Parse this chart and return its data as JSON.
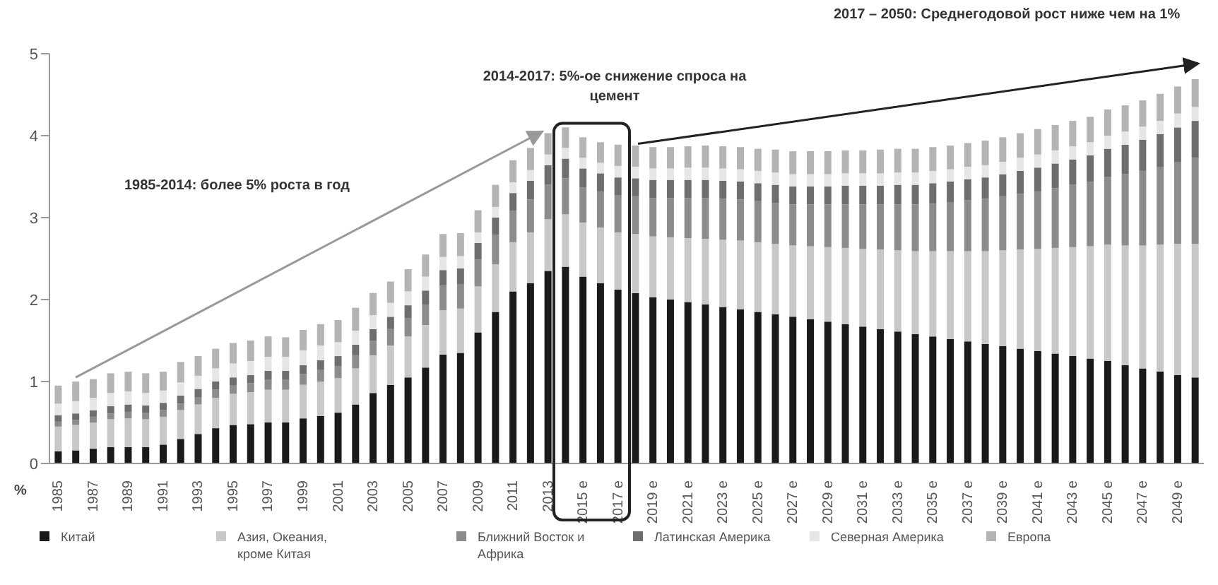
{
  "chart_data": {
    "type": "bar",
    "stacked": true,
    "ylabel": "%",
    "legend": "bottom",
    "annotations": [
      "1985-2014: более 5% роста в год",
      "2014-2017:  5%-ое снижение спроса на цемент",
      "2017 – 2050: Среднегодовой рост ниже чем на 1%"
    ],
    "ylim": [
      0,
      5
    ],
    "yticks": [
      0,
      1,
      2,
      3,
      4,
      5
    ],
    "categories": [
      "1985",
      null,
      "1987",
      null,
      "1989",
      null,
      "1991",
      null,
      "1993",
      null,
      "1995",
      null,
      "1997",
      null,
      "1999",
      null,
      "2001",
      null,
      "2003",
      null,
      "2005",
      null,
      "2007",
      null,
      "2009",
      null,
      "2011",
      null,
      "2013",
      null,
      "2015 e",
      null,
      "2017 e",
      null,
      "2019 e",
      null,
      "2021 e",
      null,
      "2023 e",
      null,
      "2025 e",
      null,
      "2027 e",
      null,
      "2029 e",
      null,
      "2031 e",
      null,
      "2033 e",
      null,
      "2035 e",
      null,
      "2037 e",
      null,
      "2039 e",
      null,
      "2041 e",
      null,
      "2043 e",
      null,
      "2045 e",
      null,
      "2047 e",
      null,
      "2049 e",
      null
    ],
    "series": [
      {
        "name": "Китай",
        "color": "#1a1a1a",
        "values": [
          0.15,
          0.16,
          0.18,
          0.2,
          0.2,
          0.2,
          0.23,
          0.3,
          0.36,
          0.43,
          0.47,
          0.48,
          0.5,
          0.5,
          0.55,
          0.58,
          0.62,
          0.72,
          0.86,
          0.96,
          1.05,
          1.17,
          1.33,
          1.35,
          1.6,
          1.85,
          2.1,
          2.2,
          2.35,
          2.4,
          2.28,
          2.2,
          2.12,
          2.08,
          2.03,
          2.0,
          1.97,
          1.94,
          1.91,
          1.88,
          1.85,
          1.82,
          1.79,
          1.76,
          1.73,
          1.7,
          1.67,
          1.64,
          1.61,
          1.58,
          1.55,
          1.52,
          1.49,
          1.46,
          1.43,
          1.4,
          1.37,
          1.34,
          1.31,
          1.28,
          1.25,
          1.2,
          1.16,
          1.12,
          1.08,
          1.05
        ]
      },
      {
        "name": "Азия, Океания, кроме  Китая",
        "color": "#c8c8c8",
        "values": [
          0.3,
          0.31,
          0.32,
          0.34,
          0.35,
          0.34,
          0.34,
          0.35,
          0.36,
          0.37,
          0.38,
          0.39,
          0.4,
          0.4,
          0.41,
          0.42,
          0.42,
          0.44,
          0.46,
          0.48,
          0.5,
          0.52,
          0.54,
          0.54,
          0.56,
          0.58,
          0.6,
          0.62,
          0.63,
          0.64,
          0.66,
          0.68,
          0.7,
          0.72,
          0.74,
          0.76,
          0.78,
          0.8,
          0.82,
          0.84,
          0.85,
          0.86,
          0.87,
          0.89,
          0.91,
          0.93,
          0.95,
          0.97,
          0.99,
          1.01,
          1.04,
          1.07,
          1.1,
          1.13,
          1.17,
          1.21,
          1.25,
          1.29,
          1.33,
          1.37,
          1.42,
          1.46,
          1.5,
          1.55,
          1.6,
          1.63
        ]
      },
      {
        "name": "Ближний Восток и Африка",
        "color": "#8c8c8c",
        "values": [
          0.06,
          0.06,
          0.07,
          0.07,
          0.08,
          0.08,
          0.08,
          0.08,
          0.09,
          0.1,
          0.1,
          0.11,
          0.12,
          0.12,
          0.13,
          0.14,
          0.15,
          0.16,
          0.18,
          0.2,
          0.22,
          0.25,
          0.3,
          0.3,
          0.33,
          0.36,
          0.38,
          0.4,
          0.42,
          0.44,
          0.43,
          0.44,
          0.45,
          0.46,
          0.47,
          0.48,
          0.49,
          0.5,
          0.5,
          0.5,
          0.5,
          0.5,
          0.5,
          0.51,
          0.52,
          0.53,
          0.54,
          0.55,
          0.56,
          0.57,
          0.58,
          0.6,
          0.62,
          0.64,
          0.66,
          0.68,
          0.7,
          0.73,
          0.76,
          0.79,
          0.83,
          0.87,
          0.91,
          0.95,
          1.0,
          1.05
        ]
      },
      {
        "name": "Латинская Америка",
        "color": "#6e6e6e",
        "values": [
          0.08,
          0.08,
          0.08,
          0.09,
          0.09,
          0.09,
          0.09,
          0.1,
          0.1,
          0.1,
          0.1,
          0.1,
          0.11,
          0.11,
          0.11,
          0.12,
          0.12,
          0.13,
          0.14,
          0.15,
          0.16,
          0.17,
          0.19,
          0.19,
          0.2,
          0.21,
          0.22,
          0.23,
          0.24,
          0.24,
          0.23,
          0.22,
          0.22,
          0.22,
          0.22,
          0.22,
          0.22,
          0.22,
          0.22,
          0.22,
          0.22,
          0.22,
          0.22,
          0.22,
          0.22,
          0.23,
          0.23,
          0.23,
          0.24,
          0.24,
          0.25,
          0.25,
          0.26,
          0.26,
          0.27,
          0.28,
          0.29,
          0.3,
          0.31,
          0.32,
          0.34,
          0.36,
          0.38,
          0.4,
          0.42,
          0.45
        ]
      },
      {
        "name": "Северная Америка",
        "color": "#e6e6e6",
        "values": [
          0.14,
          0.15,
          0.15,
          0.16,
          0.16,
          0.15,
          0.15,
          0.16,
          0.16,
          0.16,
          0.17,
          0.17,
          0.17,
          0.17,
          0.18,
          0.18,
          0.17,
          0.17,
          0.17,
          0.17,
          0.17,
          0.17,
          0.16,
          0.15,
          0.13,
          0.13,
          0.13,
          0.13,
          0.13,
          0.13,
          0.13,
          0.13,
          0.14,
          0.14,
          0.14,
          0.14,
          0.15,
          0.15,
          0.15,
          0.15,
          0.15,
          0.15,
          0.15,
          0.15,
          0.15,
          0.15,
          0.15,
          0.15,
          0.15,
          0.15,
          0.15,
          0.15,
          0.15,
          0.15,
          0.15,
          0.16,
          0.16,
          0.16,
          0.16,
          0.16,
          0.16,
          0.16,
          0.16,
          0.16,
          0.17,
          0.17
        ]
      },
      {
        "name": "Европа",
        "color": "#b4b4b4",
        "values": [
          0.22,
          0.24,
          0.23,
          0.24,
          0.24,
          0.24,
          0.23,
          0.25,
          0.24,
          0.24,
          0.25,
          0.25,
          0.25,
          0.24,
          0.25,
          0.26,
          0.27,
          0.28,
          0.27,
          0.26,
          0.27,
          0.27,
          0.28,
          0.28,
          0.27,
          0.27,
          0.27,
          0.27,
          0.26,
          0.25,
          0.25,
          0.25,
          0.26,
          0.26,
          0.26,
          0.26,
          0.26,
          0.27,
          0.27,
          0.27,
          0.27,
          0.28,
          0.28,
          0.28,
          0.28,
          0.28,
          0.28,
          0.29,
          0.29,
          0.29,
          0.29,
          0.29,
          0.29,
          0.3,
          0.3,
          0.3,
          0.31,
          0.31,
          0.31,
          0.31,
          0.32,
          0.32,
          0.32,
          0.33,
          0.33,
          0.34
        ]
      }
    ]
  }
}
